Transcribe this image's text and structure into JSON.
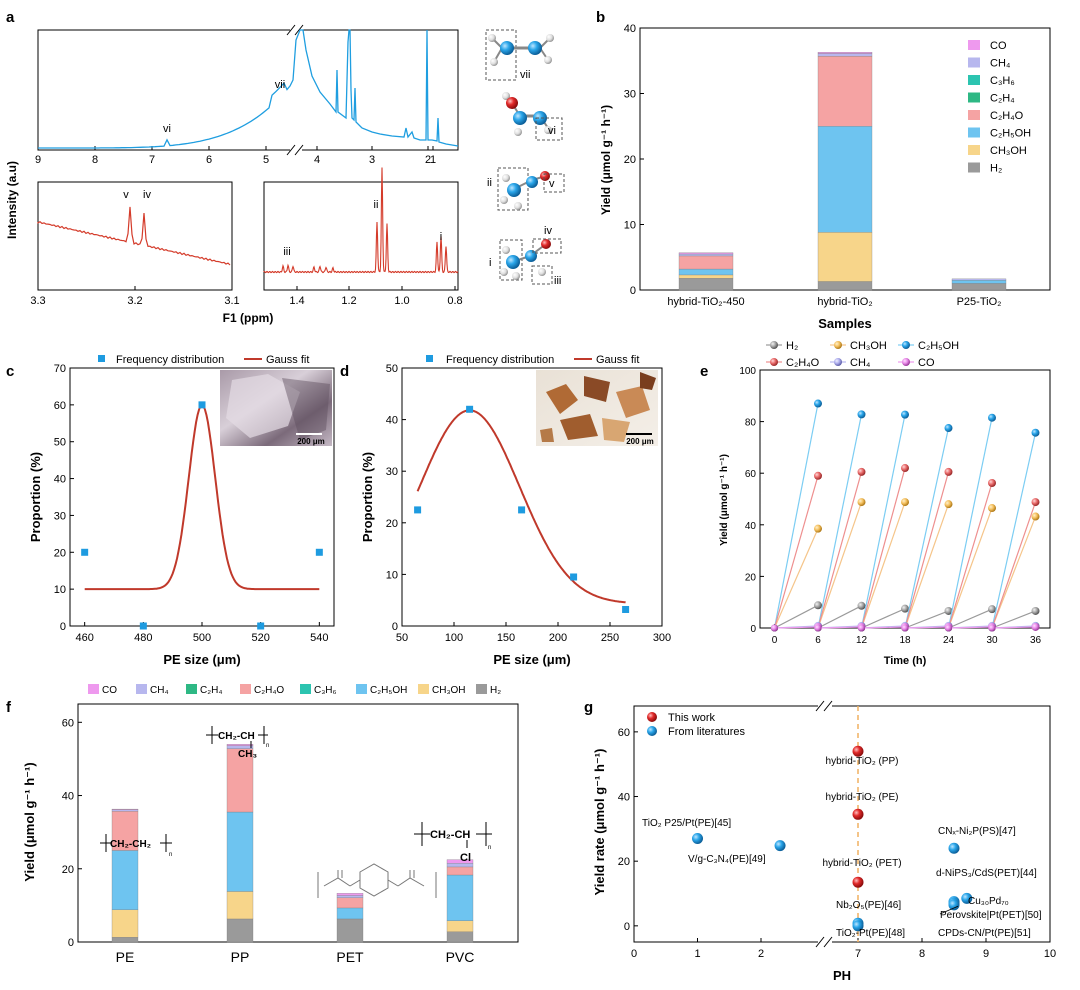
{
  "panel_labels": {
    "a": "a",
    "b": "b",
    "c": "c",
    "d": "d",
    "e": "e",
    "f": "f",
    "g": "g"
  },
  "colors": {
    "nmr_blue": "#1f9ee0",
    "nmr_red": "#d43b2a",
    "fit_red": "#c0392b",
    "square_blue": "#1e9be0",
    "CO": "#ee99ee",
    "CH4": "#b7b7ee",
    "C3H6": "#2cc4b0",
    "C2H4": "#2eb884",
    "C2H4O": "#f5a3a3",
    "C2H5OH": "#6ec4f0",
    "CH3OH": "#f7d58a",
    "H2": "#9a9a9a",
    "work_red": "#e02020",
    "lit_blue": "#1e9be0",
    "dash_orange": "#f0b060"
  },
  "chart_data": [
    {
      "id": "a",
      "type": "line",
      "ylabel": "Intensity (a.u)",
      "xlabel": "F1 (ppm)",
      "top": {
        "xticks": [
          "9",
          "8",
          "7",
          "6",
          "5",
          "4",
          "3",
          "2",
          "1"
        ],
        "peak_labels": [
          "vi",
          "vii"
        ]
      },
      "inset_left": {
        "xticks": [
          "3.3",
          "3.2",
          "3.1"
        ],
        "peak_labels": [
          "v",
          "iv"
        ]
      },
      "inset_right": {
        "xticks": [
          "1.4",
          "1.2",
          "1.0",
          "0.8"
        ],
        "peak_labels": [
          "iii",
          "ii",
          "i"
        ]
      },
      "molecule_labels": [
        "vii",
        "vi",
        "ii",
        "v",
        "iv",
        "i",
        "iii"
      ]
    },
    {
      "id": "b",
      "type": "bar",
      "stacked": true,
      "ylabel": "Yield (μmol g⁻¹ h⁻¹)",
      "xlabel": "Samples",
      "ylim": [
        0,
        40
      ],
      "yticks": [
        0,
        10,
        20,
        30,
        40
      ],
      "categories": [
        "hybrid-TiO₂-450",
        "hybrid-TiO₂",
        "P25-TiO₂"
      ],
      "legend": [
        "CO",
        "CH₄",
        "C₃H₆",
        "C₂H₄",
        "C₂H₄O",
        "C₂H₅OH",
        "CH₃OH",
        "H₂"
      ],
      "legend_position": "top-right",
      "series": [
        {
          "name": "H₂",
          "key": "H2",
          "values": [
            1.8,
            1.3,
            1.0
          ]
        },
        {
          "name": "CH₃OH",
          "key": "CH3OH",
          "values": [
            0.5,
            7.5,
            0.0
          ]
        },
        {
          "name": "C₂H₅OH",
          "key": "C2H5OH",
          "values": [
            0.9,
            16.2,
            0.5
          ]
        },
        {
          "name": "C₂H₄O",
          "key": "C2H4O",
          "values": [
            2.0,
            10.7,
            0.0
          ]
        },
        {
          "name": "C₂H₄",
          "key": "C2H4",
          "values": [
            0.0,
            0.0,
            0.0
          ]
        },
        {
          "name": "C₃H₆",
          "key": "C3H6",
          "values": [
            0.0,
            0.0,
            0.0
          ]
        },
        {
          "name": "CH₄",
          "key": "CH4",
          "values": [
            0.3,
            0.4,
            0.2
          ]
        },
        {
          "name": "CO",
          "key": "CO",
          "values": [
            0.2,
            0.2,
            0.0
          ]
        }
      ]
    },
    {
      "id": "c",
      "type": "scatter",
      "ylabel": "Proportion (%)",
      "xlabel": "PE size (μm)",
      "xlim": [
        455,
        545
      ],
      "ylim": [
        0,
        70
      ],
      "xticks": [
        460,
        480,
        500,
        520,
        540
      ],
      "yticks": [
        0,
        10,
        20,
        30,
        40,
        50,
        60,
        70
      ],
      "legend": [
        "Frequency distribution",
        "Gauss fit"
      ],
      "points": [
        [
          460,
          20
        ],
        [
          480,
          0
        ],
        [
          500,
          60
        ],
        [
          520,
          0
        ],
        [
          540,
          20
        ]
      ],
      "fit": {
        "y0": 10,
        "A": 50,
        "xc": 500,
        "w": 4.5
      },
      "inset_scale": "200 μm"
    },
    {
      "id": "d",
      "type": "scatter",
      "ylabel": "Proportion (%)",
      "xlabel": "PE size (μm)",
      "xlim": [
        50,
        300
      ],
      "ylim": [
        0,
        50
      ],
      "xticks": [
        50,
        100,
        150,
        200,
        250,
        300
      ],
      "yticks": [
        0,
        10,
        20,
        30,
        40,
        50
      ],
      "legend": [
        "Frequency distribution",
        "Gauss fit"
      ],
      "points": [
        [
          65,
          22.5
        ],
        [
          115,
          42
        ],
        [
          165,
          22.5
        ],
        [
          215,
          9.5
        ],
        [
          265,
          3.2
        ]
      ],
      "fit": {
        "y0": 4.3,
        "A": 37.5,
        "xc": 115,
        "w": 48
      },
      "inset_scale": "200 μm"
    },
    {
      "id": "e",
      "type": "line",
      "ylabel": "Yield (μmol g⁻¹ h⁻¹)",
      "xlabel": "Time (h)",
      "xlim": [
        -2,
        38
      ],
      "ylim": [
        0,
        100
      ],
      "xticks": [
        0,
        6,
        12,
        18,
        24,
        30,
        36
      ],
      "yticks": [
        0,
        20,
        40,
        60,
        80,
        100
      ],
      "legend": [
        "H₂",
        "CH₃OH",
        "C₂H₅OH",
        "C₂H₄O",
        "CH₄",
        "CO"
      ],
      "cycles": [
        0,
        6,
        12,
        18,
        24,
        30
      ],
      "series": [
        {
          "name": "H₂",
          "key": "H2",
          "values": [
            8.8,
            8.6,
            7.5,
            6.6,
            7.3,
            6.6
          ]
        },
        {
          "name": "CH₃OH",
          "key": "CH3OH",
          "values": [
            38.5,
            48.8,
            48.8,
            48.0,
            46.5,
            43.2
          ]
        },
        {
          "name": "C₂H₅OH",
          "key": "C2H5OH",
          "values": [
            87.0,
            82.8,
            82.7,
            77.5,
            81.5,
            75.7
          ]
        },
        {
          "name": "C₂H₄O",
          "key": "C2H4O",
          "values": [
            59.0,
            60.5,
            62.0,
            60.5,
            56.2,
            48.8
          ]
        },
        {
          "name": "CH₄",
          "key": "CH4",
          "values": [
            0.8,
            0.8,
            0.8,
            0.8,
            0.8,
            0.8
          ]
        },
        {
          "name": "CO",
          "key": "CO",
          "values": [
            0.4,
            0.4,
            0.4,
            0.4,
            0.4,
            0.4
          ]
        }
      ]
    },
    {
      "id": "f",
      "type": "bar",
      "stacked": true,
      "ylabel": "Yield (μmol g⁻¹ h⁻¹)",
      "ylim": [
        0,
        65
      ],
      "yticks": [
        0,
        20,
        40,
        60
      ],
      "categories": [
        "PE",
        "PP",
        "PET",
        "PVC"
      ],
      "legend": [
        "CO",
        "CH₄",
        "C₂H₄",
        "C₂H₄O",
        "C₃H₆",
        "C₂H₅OH",
        "CH₃OH",
        "H₂"
      ],
      "legend_position": "top",
      "series": [
        {
          "name": "H₂",
          "key": "H2",
          "values": [
            1.3,
            6.3,
            6.3,
            2.8
          ]
        },
        {
          "name": "CH₃OH",
          "key": "CH3OH",
          "values": [
            7.5,
            7.5,
            0.0,
            3.0
          ]
        },
        {
          "name": "C₂H₅OH",
          "key": "C2H5OH",
          "values": [
            16.2,
            21.7,
            3.0,
            12.5
          ]
        },
        {
          "name": "C₂H₄O",
          "key": "C2H4O",
          "values": [
            10.7,
            17.3,
            2.8,
            2.2
          ]
        },
        {
          "name": "C₃H₆",
          "key": "C3H6",
          "values": [
            0.0,
            0.0,
            0.0,
            0.0
          ]
        },
        {
          "name": "C₂H₄",
          "key": "C2H4",
          "values": [
            0.0,
            0.0,
            0.0,
            0.0
          ]
        },
        {
          "name": "CH₄",
          "key": "CH4",
          "values": [
            0.4,
            0.8,
            0.6,
            1.0
          ]
        },
        {
          "name": "CO",
          "key": "CO",
          "values": [
            0.2,
            0.4,
            0.6,
            1.0
          ]
        }
      ],
      "structures": {
        "pe": "CH₂-CH₂",
        "pp_top": "CH₂-CH",
        "pp_sub": "CH₃",
        "pvc_top": "CH₂-CH",
        "pvc_sub": "Cl",
        "n": "n"
      }
    },
    {
      "id": "g",
      "type": "scatter",
      "ylabel": "Yield rate (μmol g⁻¹ h⁻¹)",
      "xlabel": "PH",
      "xlim": [
        0,
        10
      ],
      "ylim": [
        -5,
        68
      ],
      "xticks": [
        0,
        1,
        2,
        7,
        8,
        9,
        10
      ],
      "yticks": [
        0,
        20,
        40,
        60
      ],
      "legend": [
        "This work",
        "From literatures"
      ],
      "dashed_x": 7,
      "points": [
        {
          "x": 7,
          "y": 54,
          "group": "work",
          "label": "hybrid-TiO₂ (PP)"
        },
        {
          "x": 7,
          "y": 34.5,
          "group": "work",
          "label": "hybrid-TiO₂ (PE)"
        },
        {
          "x": 7,
          "y": 13.5,
          "group": "work",
          "label": "hybrid-TiO₂ (PET)"
        },
        {
          "x": 1,
          "y": 27,
          "group": "lit",
          "label": "TiO₂ P25/Pt(PE)[45]"
        },
        {
          "x": 2.3,
          "y": 24.8,
          "group": "lit",
          "label": "V/g-C₃N₄(PE)[49]"
        },
        {
          "x": 7,
          "y": 0.8,
          "group": "lit",
          "label": "Nb₂O₅(PE)[46]"
        },
        {
          "x": 7,
          "y": 0.0,
          "group": "lit",
          "label": "TiO₂-Pt(PE)[48]"
        },
        {
          "x": 8.5,
          "y": 24,
          "group": "lit",
          "label": "CNₓ-Ni₂P(PS)[47]"
        },
        {
          "x": 8.5,
          "y": 7.5,
          "group": "lit",
          "label": "d-NiPS₃/CdS(PET)[44]"
        },
        {
          "x": 8.7,
          "y": 8.5,
          "group": "lit",
          "label": "Cu₃₀Pd₇₀"
        },
        {
          "x": 8.5,
          "y": 7.0,
          "group": "lit",
          "label": "Perovskite|Pt(PET)[50]"
        },
        {
          "x": 8.5,
          "y": 6.5,
          "group": "lit",
          "label": "CPDs-CN/Pt(PE)[51]"
        }
      ]
    }
  ]
}
